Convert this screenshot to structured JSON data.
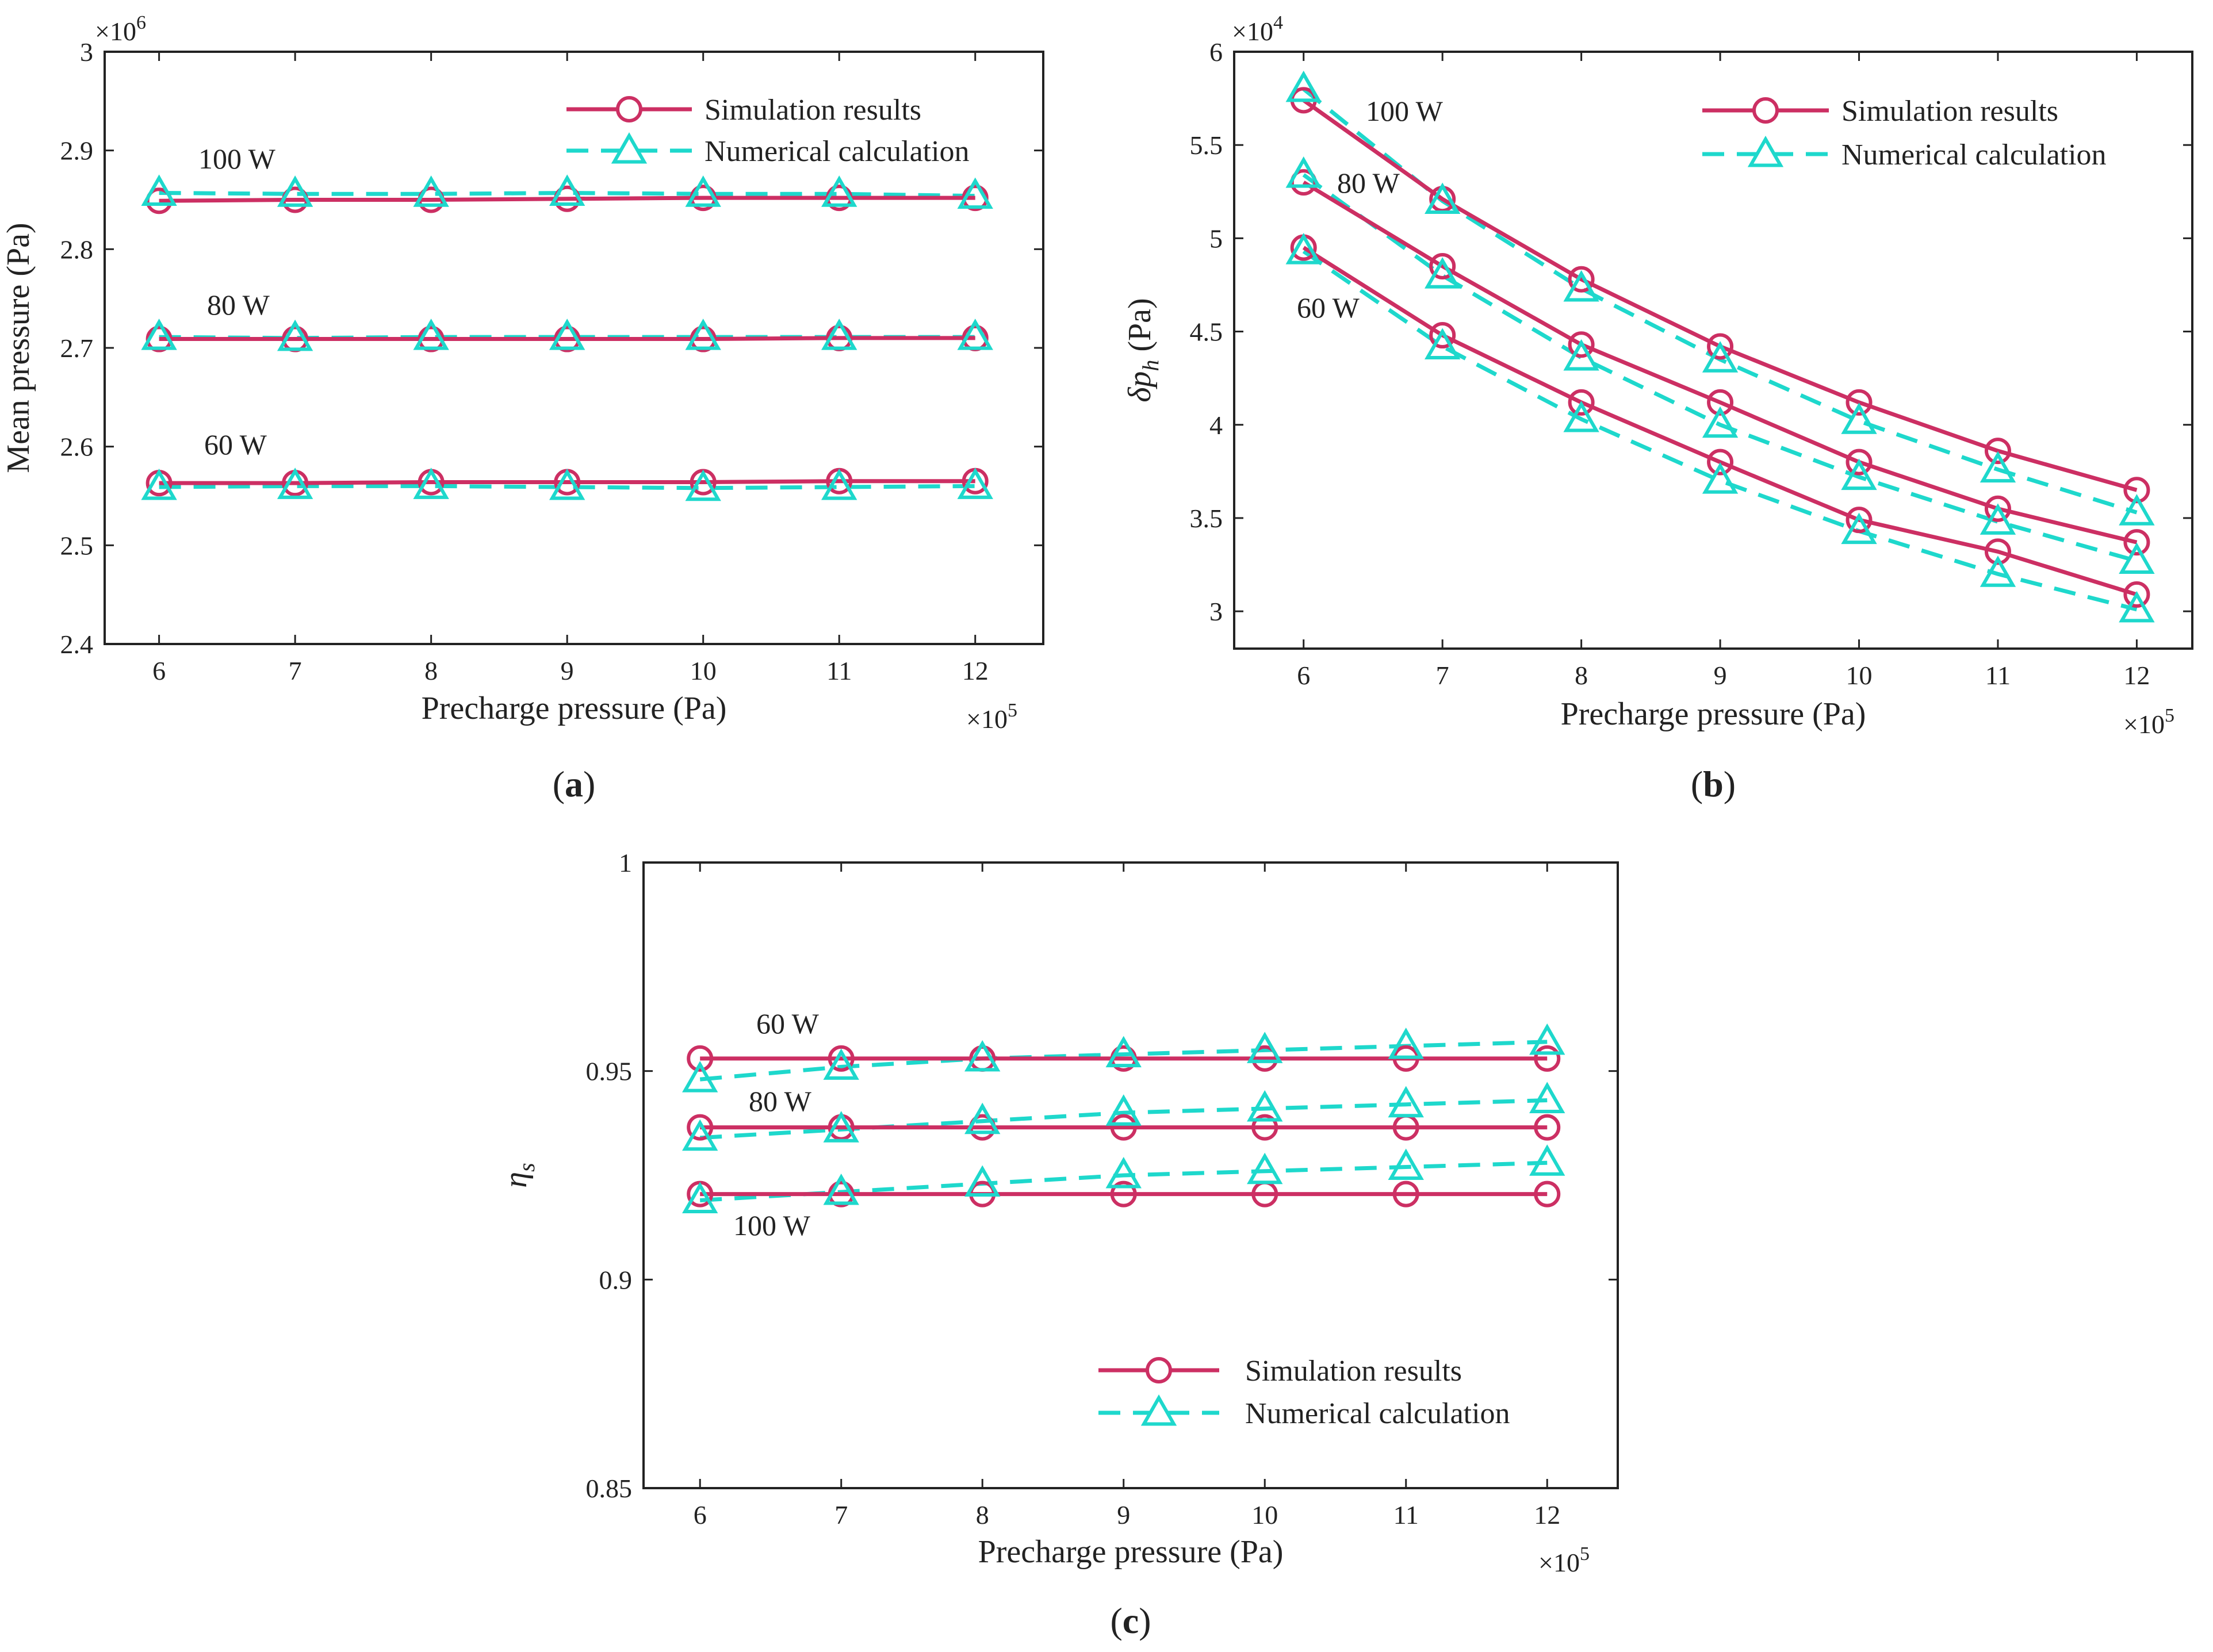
{
  "colors": {
    "sim": "#cc2f63",
    "num": "#1ed8cc",
    "axis": "#222222"
  },
  "chart_data": [
    {
      "id": "a",
      "type": "line",
      "panel_label": "a",
      "xlabel": "Precharge pressure (Pa)",
      "ylabel": "Mean pressure (Pa)",
      "x_multiplier": "×10",
      "x_multiplier_exp": "5",
      "y_multiplier": "×10",
      "y_multiplier_exp": "6",
      "x": [
        6,
        7,
        8,
        9,
        10,
        11,
        12
      ],
      "xlim": [
        5.6,
        12.5
      ],
      "ylim": [
        2.4,
        3.0
      ],
      "x_tick_labels": [
        "6",
        "7",
        "8",
        "9",
        "10",
        "11",
        "12"
      ],
      "y_ticks": [
        2.4,
        2.5,
        2.6,
        2.7,
        2.8,
        2.9,
        3.0
      ],
      "y_tick_labels": [
        "2.4",
        "2.5",
        "2.6",
        "2.7",
        "2.8",
        "2.9",
        "3"
      ],
      "legend": {
        "position": "top-right",
        "sim_label": "Simulation results",
        "num_label": "Numerical calculation"
      },
      "groups": [
        {
          "label": "100 W",
          "sim": [
            2.849,
            2.85,
            2.85,
            2.851,
            2.852,
            2.852,
            2.852
          ],
          "num": [
            2.857,
            2.856,
            2.856,
            2.857,
            2.856,
            2.856,
            2.854
          ]
        },
        {
          "label": "80 W",
          "sim": [
            2.709,
            2.709,
            2.709,
            2.709,
            2.709,
            2.71,
            2.71
          ],
          "num": [
            2.711,
            2.71,
            2.711,
            2.711,
            2.711,
            2.711,
            2.711
          ]
        },
        {
          "label": "60 W",
          "sim": [
            2.563,
            2.563,
            2.564,
            2.564,
            2.564,
            2.565,
            2.565
          ],
          "num": [
            2.559,
            2.56,
            2.56,
            2.559,
            2.558,
            2.559,
            2.56
          ]
        }
      ]
    },
    {
      "id": "b",
      "type": "line",
      "panel_label": "b",
      "xlabel": "Precharge pressure (Pa)",
      "ylabel": "δp",
      "ylabel_sub": "h",
      "ylabel_unit": " (Pa)",
      "x_multiplier": "×10",
      "x_multiplier_exp": "5",
      "y_multiplier": "×10",
      "y_multiplier_exp": "4",
      "x": [
        6,
        7,
        8,
        9,
        10,
        11,
        12
      ],
      "xlim": [
        5.5,
        12.4
      ],
      "ylim": [
        2.8,
        6.0
      ],
      "x_tick_labels": [
        "6",
        "7",
        "8",
        "9",
        "10",
        "11",
        "12"
      ],
      "y_ticks": [
        3.0,
        3.5,
        4.0,
        4.5,
        5.0,
        5.5,
        6.0
      ],
      "y_tick_labels": [
        "3",
        "3.5",
        "4",
        "4.5",
        "5",
        "5.5",
        "6"
      ],
      "legend": {
        "position": "top-right",
        "sim_label": "Simulation results",
        "num_label": "Numerical calculation"
      },
      "groups": [
        {
          "label": "100 W",
          "sim": [
            5.74,
            5.21,
            4.78,
            4.42,
            4.12,
            3.86,
            3.65
          ],
          "num": [
            5.8,
            5.2,
            4.73,
            4.35,
            4.02,
            3.76,
            3.53
          ]
        },
        {
          "label": "80 W",
          "sim": [
            5.3,
            4.85,
            4.43,
            4.12,
            3.8,
            3.55,
            3.37
          ],
          "num": [
            5.34,
            4.8,
            4.36,
            4.0,
            3.72,
            3.48,
            3.27
          ]
        },
        {
          "label": "60 W",
          "sim": [
            4.95,
            4.48,
            4.12,
            3.8,
            3.49,
            3.32,
            3.09
          ],
          "num": [
            4.93,
            4.42,
            4.03,
            3.7,
            3.43,
            3.2,
            3.01
          ]
        }
      ]
    },
    {
      "id": "c",
      "type": "line",
      "panel_label": "c",
      "xlabel": "Precharge pressure (Pa)",
      "ylabel": "η",
      "ylabel_sub": "s",
      "x_multiplier": "×10",
      "x_multiplier_exp": "5",
      "x": [
        6,
        7,
        8,
        9,
        10,
        11,
        12
      ],
      "xlim": [
        5.6,
        12.5
      ],
      "ylim": [
        0.85,
        1.0
      ],
      "x_tick_labels": [
        "6",
        "7",
        "8",
        "9",
        "10",
        "11",
        "12"
      ],
      "y_ticks": [
        0.85,
        0.9,
        0.95,
        1.0
      ],
      "y_tick_labels": [
        "0.85",
        "0.9",
        "0.95",
        "1"
      ],
      "legend": {
        "position": "bottom-right",
        "sim_label": "Simulation results",
        "num_label": "Numerical calculation"
      },
      "groups": [
        {
          "label": "60 W",
          "sim": [
            0.953,
            0.953,
            0.953,
            0.953,
            0.953,
            0.953,
            0.953
          ],
          "num": [
            0.948,
            0.951,
            0.953,
            0.954,
            0.955,
            0.956,
            0.957
          ]
        },
        {
          "label": "80 W",
          "sim": [
            0.9365,
            0.9365,
            0.9365,
            0.9365,
            0.9365,
            0.9365,
            0.9365
          ],
          "num": [
            0.934,
            0.936,
            0.938,
            0.94,
            0.941,
            0.942,
            0.943
          ]
        },
        {
          "label": "100 W",
          "sim": [
            0.9205,
            0.9205,
            0.9205,
            0.9205,
            0.9205,
            0.9205,
            0.9205
          ],
          "num": [
            0.919,
            0.921,
            0.923,
            0.925,
            0.926,
            0.927,
            0.928
          ]
        }
      ]
    }
  ]
}
